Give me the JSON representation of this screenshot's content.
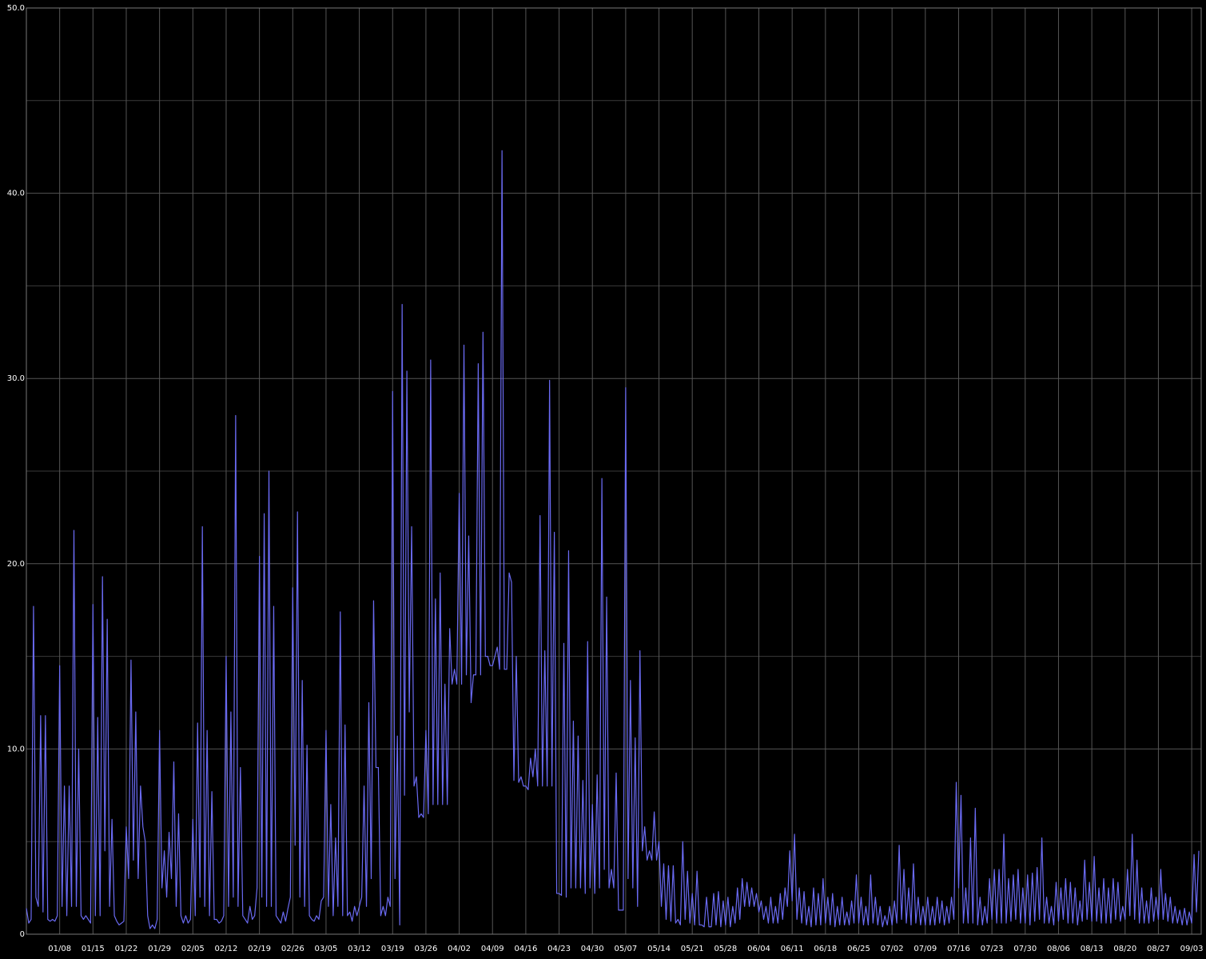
{
  "chart_data": {
    "type": "line",
    "color": "#6a6af2",
    "grid": true,
    "xlim": [
      0,
      247
    ],
    "ylim": [
      0,
      50
    ],
    "yticks": [
      0,
      {
        "value": 10,
        "label": "10.0"
      },
      {
        "value": 20,
        "label": "20.0"
      },
      {
        "value": 30,
        "label": "30.0"
      },
      {
        "value": 40,
        "label": "40.0"
      },
      {
        "value": 50,
        "label": "50.0"
      }
    ],
    "y_minor_ticks": [
      5,
      15,
      25,
      35,
      45
    ],
    "xticks": [
      {
        "value": 7,
        "label": "01/08"
      },
      {
        "value": 14,
        "label": "01/15"
      },
      {
        "value": 21,
        "label": "01/22"
      },
      {
        "value": 28,
        "label": "01/29"
      },
      {
        "value": 35,
        "label": "02/05"
      },
      {
        "value": 42,
        "label": "02/12"
      },
      {
        "value": 49,
        "label": "02/19"
      },
      {
        "value": 56,
        "label": "02/26"
      },
      {
        "value": 63,
        "label": "03/05"
      },
      {
        "value": 70,
        "label": "03/12"
      },
      {
        "value": 77,
        "label": "03/19"
      },
      {
        "value": 84,
        "label": "03/26"
      },
      {
        "value": 91,
        "label": "04/02"
      },
      {
        "value": 98,
        "label": "04/09"
      },
      {
        "value": 105,
        "label": "04/16"
      },
      {
        "value": 112,
        "label": "04/23"
      },
      {
        "value": 119,
        "label": "04/30"
      },
      {
        "value": 126,
        "label": "05/07"
      },
      {
        "value": 133,
        "label": "05/14"
      },
      {
        "value": 140,
        "label": "05/21"
      },
      {
        "value": 147,
        "label": "05/28"
      },
      {
        "value": 154,
        "label": "06/04"
      },
      {
        "value": 161,
        "label": "06/11"
      },
      {
        "value": 168,
        "label": "06/18"
      },
      {
        "value": 175,
        "label": "06/25"
      },
      {
        "value": 182,
        "label": "07/02"
      },
      {
        "value": 189,
        "label": "07/09"
      },
      {
        "value": 196,
        "label": "07/16"
      },
      {
        "value": 203,
        "label": "07/23"
      },
      {
        "value": 210,
        "label": "07/30"
      },
      {
        "value": 217,
        "label": "08/06"
      },
      {
        "value": 224,
        "label": "08/13"
      },
      {
        "value": 231,
        "label": "08/20"
      },
      {
        "value": 238,
        "label": "08/27"
      },
      {
        "value": 245,
        "label": "09/03"
      }
    ],
    "x": [
      0,
      0.5,
      1,
      1.5,
      2,
      2.5,
      3,
      3.5,
      4,
      4.5,
      5,
      5.5,
      6,
      6.5,
      7,
      7.5,
      8,
      8.5,
      9,
      9.5,
      10,
      10.5,
      11,
      11.5,
      12,
      12.5,
      13,
      13.5,
      14,
      14.5,
      15,
      15.5,
      16,
      16.5,
      17,
      17.5,
      18,
      18.5,
      19,
      19.5,
      20,
      20.5,
      21,
      21.5,
      22,
      22.5,
      23,
      23.5,
      24,
      24.5,
      25,
      25.5,
      26,
      26.5,
      27,
      27.5,
      28,
      28.5,
      29,
      29.5,
      30,
      30.5,
      31,
      31.5,
      32,
      32.5,
      33,
      33.5,
      34,
      34.5,
      35,
      35.5,
      36,
      36.5,
      37,
      37.5,
      38,
      38.5,
      39,
      39.5,
      40,
      40.5,
      41,
      41.5,
      42,
      42.5,
      43,
      43.5,
      44,
      44.5,
      45,
      45.5,
      46,
      46.5,
      47,
      47.5,
      48,
      48.5,
      49,
      49.5,
      50,
      50.5,
      51,
      51.5,
      52,
      52.5,
      53,
      53.5,
      54,
      54.5,
      55,
      55.5,
      56,
      56.5,
      57,
      57.5,
      58,
      58.5,
      59,
      59.5,
      60,
      60.5,
      61,
      61.5,
      62,
      62.5,
      63,
      63.5,
      64,
      64.5,
      65,
      65.5,
      66,
      66.5,
      67,
      67.5,
      68,
      68.5,
      69,
      69.5,
      70,
      70.5,
      71,
      71.5,
      72,
      72.5,
      73,
      73.5,
      74,
      74.5,
      75,
      75.5,
      76,
      76.5,
      77,
      77.5,
      78,
      78.5,
      79,
      79.5,
      80,
      80.5,
      81,
      81.5,
      82,
      82.5,
      83,
      83.5,
      84,
      84.5,
      85,
      85.5,
      86,
      86.5,
      87,
      87.5,
      88,
      88.5,
      89,
      89.5,
      90,
      90.5,
      91,
      91.5,
      92,
      92.5,
      93,
      93.5,
      94,
      94.5,
      95,
      95.5,
      96,
      96.5,
      97,
      97.5,
      98,
      98.5,
      99,
      99.5,
      100,
      100.5,
      101,
      101.5,
      102,
      102.5,
      103,
      103.5,
      104,
      104.5,
      105,
      105.5,
      106,
      106.5,
      107,
      107.5,
      108,
      108.5,
      109,
      109.5,
      110,
      110.5,
      111,
      111.5,
      112,
      112.5,
      113,
      113.5,
      114,
      114.5,
      115,
      115.5,
      116,
      116.5,
      117,
      117.5,
      118,
      118.5,
      119,
      119.5,
      120,
      120.5,
      121,
      121.5,
      122,
      122.5,
      123,
      123.5,
      124,
      124.5,
      125,
      125.5,
      126,
      126.5,
      127,
      127.5,
      128,
      128.5,
      129,
      129.5,
      130,
      130.5,
      131,
      131.5,
      132,
      132.5,
      133,
      133.5,
      134,
      134.5,
      135,
      135.5,
      136,
      136.5,
      137,
      137.5,
      138,
      138.5,
      139,
      139.5,
      140,
      140.5,
      141,
      141.5,
      142,
      142.5,
      143,
      143.5,
      144,
      144.5,
      145,
      145.5,
      146,
      146.5,
      147,
      147.5,
      148,
      148.5,
      149,
      149.5,
      150,
      150.5,
      151,
      151.5,
      152,
      152.5,
      153,
      153.5,
      154,
      154.5,
      155,
      155.5,
      156,
      156.5,
      157,
      157.5,
      158,
      158.5,
      159,
      159.5,
      160,
      160.5,
      161,
      161.5,
      162,
      162.5,
      163,
      163.5,
      164,
      164.5,
      165,
      165.5,
      166,
      166.5,
      167,
      167.5,
      168,
      168.5,
      169,
      169.5,
      170,
      170.5,
      171,
      171.5,
      172,
      172.5,
      173,
      173.5,
      174,
      174.5,
      175,
      175.5,
      176,
      176.5,
      177,
      177.5,
      178,
      178.5,
      179,
      179.5,
      180,
      180.5,
      181,
      181.5,
      182,
      182.5,
      183,
      183.5,
      184,
      184.5,
      185,
      185.5,
      186,
      186.5,
      187,
      187.5,
      188,
      188.5,
      189,
      189.5,
      190,
      190.5,
      191,
      191.5,
      192,
      192.5,
      193,
      193.5,
      194,
      194.5,
      195,
      195.5,
      196,
      196.5,
      197,
      197.5,
      198,
      198.5,
      199,
      199.5,
      200,
      200.5,
      201,
      201.5,
      202,
      202.5,
      203,
      203.5,
      204,
      204.5,
      205,
      205.5,
      206,
      206.5,
      207,
      207.5,
      208,
      208.5,
      209,
      209.5,
      210,
      210.5,
      211,
      211.5,
      212,
      212.5,
      213,
      213.5,
      214,
      214.5,
      215,
      215.5,
      216,
      216.5,
      217,
      217.5,
      218,
      218.5,
      219,
      219.5,
      220,
      220.5,
      221,
      221.5,
      222,
      222.5,
      223,
      223.5,
      224,
      224.5,
      225,
      225.5,
      226,
      226.5,
      227,
      227.5,
      228,
      228.5,
      229,
      229.5,
      230,
      230.5,
      231,
      231.5,
      232,
      232.5,
      233,
      233.5,
      234,
      234.5,
      235,
      235.5,
      236,
      236.5,
      237,
      237.5,
      238,
      238.5,
      239,
      239.5,
      240,
      240.5,
      241,
      241.5,
      242,
      242.5,
      243,
      243.5,
      244,
      244.5,
      245,
      245.5,
      246,
      246.5
    ],
    "values": [
      1.4,
      0.6,
      0.8,
      17.7,
      2,
      1.5,
      11.8,
      1.2,
      11.8,
      0.8,
      0.7,
      0.8,
      0.7,
      1,
      14.5,
      1.5,
      8,
      1,
      8,
      1.5,
      21.8,
      1.5,
      10,
      1,
      0.8,
      1,
      0.8,
      0.6,
      17.8,
      1,
      11.7,
      1,
      19.3,
      4.5,
      17,
      1.5,
      6.2,
      1,
      0.7,
      0.5,
      0.6,
      0.7,
      5.8,
      3,
      14.8,
      4,
      12,
      3,
      8,
      5.8,
      5,
      1,
      0.3,
      0.5,
      0.3,
      0.8,
      11,
      2.5,
      4.5,
      2,
      5.5,
      3,
      9.3,
      1.5,
      6.5,
      1,
      0.6,
      1,
      0.6,
      0.8,
      6.2,
      1,
      11.4,
      2,
      22,
      1.5,
      11,
      1,
      7.7,
      0.8,
      0.8,
      0.6,
      0.7,
      1,
      15,
      1.5,
      12,
      2,
      28,
      1.5,
      9,
      1,
      0.8,
      0.6,
      1.5,
      0.8,
      1,
      2.5,
      20.4,
      2,
      22.7,
      1.5,
      25,
      1.5,
      17.7,
      1,
      0.8,
      0.6,
      1.2,
      0.7,
      1.4,
      2,
      18.7,
      4.8,
      22.8,
      2,
      13.7,
      1.5,
      10.2,
      1,
      0.8,
      0.7,
      1,
      0.8,
      1.8,
      2,
      11,
      1.5,
      7,
      1,
      5.2,
      1.5,
      17.4,
      1,
      11.3,
      1,
      1.2,
      0.7,
      1.5,
      1,
      1.5,
      2,
      8,
      1.5,
      12.5,
      3,
      18,
      9,
      9,
      1,
      1.5,
      1,
      2,
      1.5,
      29.3,
      3,
      10.7,
      0.5,
      34,
      7.5,
      30.4,
      12,
      22,
      8,
      8.5,
      6.3,
      6.5,
      6.3,
      11,
      6.5,
      31,
      7,
      18.1,
      7,
      19.5,
      7,
      13.5,
      7,
      16.5,
      13.5,
      14.3,
      13.5,
      23.8,
      13.5,
      31.8,
      14,
      21.5,
      12.5,
      14,
      14,
      30.8,
      14,
      32.5,
      15,
      15,
      14.5,
      14.5,
      15,
      15.5,
      14.3,
      42.3,
      14.3,
      14.3,
      19.5,
      19,
      8.3,
      15,
      8.2,
      8.5,
      8,
      8,
      7.8,
      9.5,
      8.5,
      10,
      8,
      22.6,
      8,
      15.3,
      8,
      29.9,
      8,
      21.7,
      2.2,
      2.2,
      2.1,
      15.7,
      2,
      20.7,
      2.5,
      11.5,
      2.5,
      10.7,
      2.5,
      8.3,
      2.2,
      15.8,
      2.5,
      7,
      2.2,
      8.6,
      2.5,
      24.6,
      3.5,
      18.2,
      2.5,
      3.5,
      2.5,
      8.7,
      1.3,
      1.3,
      1.3,
      29.5,
      3,
      13.7,
      2.5,
      10.6,
      1.5,
      15.3,
      4.5,
      5.8,
      4,
      4.5,
      4,
      6.6,
      4,
      5,
      1.5,
      3.8,
      0.8,
      3.7,
      0.7,
      3.7,
      0.6,
      0.8,
      0.5,
      5,
      0.8,
      3.4,
      0.6,
      2.2,
      0.5,
      3.4,
      0.5,
      0.5,
      0.4,
      2,
      0.4,
      0.4,
      2.2,
      0.5,
      2.3,
      0.4,
      1.8,
      0.5,
      2,
      0.4,
      1.5,
      0.6,
      2.5,
      0.8,
      3,
      1.5,
      2.8,
      1.5,
      2.5,
      1.5,
      2.2,
      1.2,
      1.8,
      0.8,
      1.5,
      0.6,
      2,
      0.6,
      1.5,
      0.6,
      2.2,
      0.8,
      2.5,
      1.5,
      4.5,
      1.8,
      5.4,
      0.8,
      2.5,
      0.6,
      2.3,
      0.5,
      1.5,
      0.4,
      2.5,
      0.5,
      2.2,
      0.5,
      3,
      0.6,
      2,
      0.5,
      2.2,
      0.4,
      1.5,
      0.5,
      2,
      0.5,
      1.2,
      0.5,
      1.8,
      0.6,
      3.2,
      0.6,
      2,
      0.5,
      1.5,
      0.5,
      3.2,
      0.6,
      2,
      0.5,
      1.5,
      0.4,
      1,
      0.5,
      1.5,
      0.5,
      1.8,
      0.6,
      4.8,
      0.8,
      3.5,
      0.6,
      2.5,
      0.5,
      3.8,
      0.6,
      2,
      0.5,
      1.5,
      0.5,
      2,
      0.5,
      1.5,
      0.5,
      2,
      0.6,
      1.8,
      0.5,
      1.5,
      0.6,
      2,
      0.8,
      8.2,
      2.5,
      7.5,
      0.6,
      2.5,
      0.6,
      5.2,
      0.6,
      6.8,
      0.5,
      2,
      0.5,
      1.5,
      0.6,
      3,
      0.8,
      3.5,
      0.6,
      3.5,
      0.6,
      5.4,
      0.6,
      3,
      0.7,
      3.2,
      0.8,
      3.5,
      0.6,
      2.5,
      0.6,
      3.2,
      0.5,
      3.3,
      0.7,
      3.6,
      0.8,
      5.2,
      0.6,
      2,
      0.6,
      1.5,
      0.5,
      2.8,
      0.7,
      2.5,
      0.8,
      3,
      0.6,
      2.8,
      0.6,
      2.5,
      0.5,
      1.8,
      0.7,
      4,
      0.8,
      2.8,
      0.7,
      4.2,
      0.7,
      2.5,
      0.6,
      3,
      0.6,
      2.5,
      0.6,
      3,
      0.8,
      2.8,
      0.7,
      1.5,
      0.8,
      3.5,
      1,
      5.4,
      0.8,
      4,
      0.6,
      2.5,
      0.6,
      1.8,
      0.6,
      2.5,
      0.7,
      2,
      0.8,
      3.5,
      0.8,
      2.2,
      0.7,
      2,
      0.6,
      1.5,
      0.6,
      1.3,
      0.5,
      1.4,
      0.5,
      1.2,
      0.6,
      4.3,
      1.2,
      4.5
    ]
  }
}
